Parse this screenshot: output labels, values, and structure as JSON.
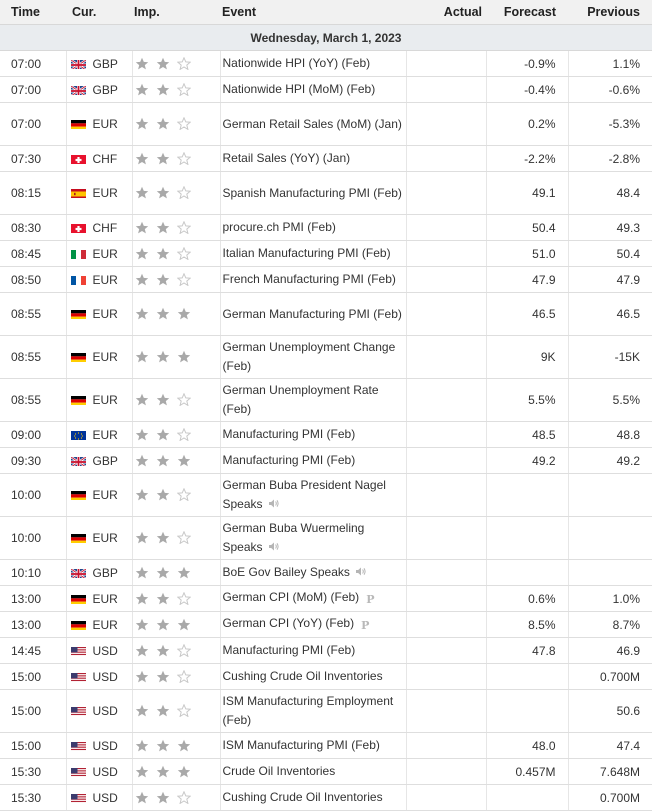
{
  "headers": {
    "time": "Time",
    "currency": "Cur.",
    "importance": "Imp.",
    "event": "Event",
    "actual": "Actual",
    "forecast": "Forecast",
    "previous": "Previous"
  },
  "date_label": "Wednesday, March 1, 2023",
  "colors": {
    "star_filled": "#a9a9a9",
    "star_empty": "#c8c8c8",
    "header_bg": "#f1f1f1",
    "date_bg": "#e9ecef"
  },
  "events": [
    {
      "time": "07:00",
      "flag": "gb",
      "currency": "GBP",
      "importance": 2,
      "event": "Nationwide HPI (YoY) (Feb)",
      "actual": "",
      "forecast": "-0.9%",
      "previous": "1.1%",
      "lines": 1,
      "icon": ""
    },
    {
      "time": "07:00",
      "flag": "gb",
      "currency": "GBP",
      "importance": 2,
      "event": "Nationwide HPI (MoM) (Feb)",
      "actual": "",
      "forecast": "-0.4%",
      "previous": "-0.6%",
      "lines": 1,
      "icon": ""
    },
    {
      "time": "07:00",
      "flag": "de",
      "currency": "EUR",
      "importance": 2,
      "event": "German Retail Sales (MoM) (Jan)",
      "actual": "",
      "forecast": "0.2%",
      "previous": "-5.3%",
      "lines": 2,
      "icon": ""
    },
    {
      "time": "07:30",
      "flag": "ch",
      "currency": "CHF",
      "importance": 2,
      "event": "Retail Sales (YoY) (Jan)",
      "actual": "",
      "forecast": "-2.2%",
      "previous": "-2.8%",
      "lines": 1,
      "icon": ""
    },
    {
      "time": "08:15",
      "flag": "es",
      "currency": "EUR",
      "importance": 2,
      "event": "Spanish Manufacturing PMI (Feb)",
      "actual": "",
      "forecast": "49.1",
      "previous": "48.4",
      "lines": 2,
      "icon": ""
    },
    {
      "time": "08:30",
      "flag": "ch",
      "currency": "CHF",
      "importance": 2,
      "event": "procure.ch PMI (Feb)",
      "actual": "",
      "forecast": "50.4",
      "previous": "49.3",
      "lines": 1,
      "icon": ""
    },
    {
      "time": "08:45",
      "flag": "it",
      "currency": "EUR",
      "importance": 2,
      "event": "Italian Manufacturing PMI (Feb)",
      "actual": "",
      "forecast": "51.0",
      "previous": "50.4",
      "lines": 1,
      "icon": ""
    },
    {
      "time": "08:50",
      "flag": "fr",
      "currency": "EUR",
      "importance": 2,
      "event": "French Manufacturing PMI (Feb)",
      "actual": "",
      "forecast": "47.9",
      "previous": "47.9",
      "lines": 1,
      "icon": ""
    },
    {
      "time": "08:55",
      "flag": "de",
      "currency": "EUR",
      "importance": 3,
      "event": "German Manufacturing PMI (Feb)",
      "actual": "",
      "forecast": "46.5",
      "previous": "46.5",
      "lines": 2,
      "icon": ""
    },
    {
      "time": "08:55",
      "flag": "de",
      "currency": "EUR",
      "importance": 3,
      "event": "German Unemployment Change (Feb)",
      "actual": "",
      "forecast": "9K",
      "previous": "-15K",
      "lines": 2,
      "icon": ""
    },
    {
      "time": "08:55",
      "flag": "de",
      "currency": "EUR",
      "importance": 2,
      "event": "German Unemployment Rate (Feb)",
      "actual": "",
      "forecast": "5.5%",
      "previous": "5.5%",
      "lines": 2,
      "icon": ""
    },
    {
      "time": "09:00",
      "flag": "eu",
      "currency": "EUR",
      "importance": 2,
      "event": "Manufacturing PMI (Feb)",
      "actual": "",
      "forecast": "48.5",
      "previous": "48.8",
      "lines": 1,
      "icon": ""
    },
    {
      "time": "09:30",
      "flag": "gb",
      "currency": "GBP",
      "importance": 3,
      "event": "Manufacturing PMI (Feb)",
      "actual": "",
      "forecast": "49.2",
      "previous": "49.2",
      "lines": 1,
      "icon": ""
    },
    {
      "time": "10:00",
      "flag": "de",
      "currency": "EUR",
      "importance": 2,
      "event": "German Buba President Nagel Speaks",
      "actual": "",
      "forecast": "",
      "previous": "",
      "lines": 2,
      "icon": "speaker"
    },
    {
      "time": "10:00",
      "flag": "de",
      "currency": "EUR",
      "importance": 2,
      "event": "German Buba Wuermeling Speaks",
      "actual": "",
      "forecast": "",
      "previous": "",
      "lines": 2,
      "icon": "speaker"
    },
    {
      "time": "10:10",
      "flag": "gb",
      "currency": "GBP",
      "importance": 3,
      "event": "BoE Gov Bailey Speaks",
      "actual": "",
      "forecast": "",
      "previous": "",
      "lines": 1,
      "icon": "speaker"
    },
    {
      "time": "13:00",
      "flag": "de",
      "currency": "EUR",
      "importance": 2,
      "event": "German CPI (MoM) (Feb)",
      "actual": "",
      "forecast": "0.6%",
      "previous": "1.0%",
      "lines": 1,
      "icon": "preliminary"
    },
    {
      "time": "13:00",
      "flag": "de",
      "currency": "EUR",
      "importance": 3,
      "event": "German CPI (YoY) (Feb)",
      "actual": "",
      "forecast": "8.5%",
      "previous": "8.7%",
      "lines": 1,
      "icon": "preliminary"
    },
    {
      "time": "14:45",
      "flag": "us",
      "currency": "USD",
      "importance": 2,
      "event": "Manufacturing PMI (Feb)",
      "actual": "",
      "forecast": "47.8",
      "previous": "46.9",
      "lines": 1,
      "icon": ""
    },
    {
      "time": "15:00",
      "flag": "us",
      "currency": "USD",
      "importance": 2,
      "event": "Cushing Crude Oil Inventories",
      "actual": "",
      "forecast": "",
      "previous": "0.700M",
      "lines": 1,
      "icon": ""
    },
    {
      "time": "15:00",
      "flag": "us",
      "currency": "USD",
      "importance": 2,
      "event": "ISM Manufacturing Employment (Feb)",
      "actual": "",
      "forecast": "",
      "previous": "50.6",
      "lines": 2,
      "icon": ""
    },
    {
      "time": "15:00",
      "flag": "us",
      "currency": "USD",
      "importance": 3,
      "event": "ISM Manufacturing PMI (Feb)",
      "actual": "",
      "forecast": "48.0",
      "previous": "47.4",
      "lines": 1,
      "icon": ""
    },
    {
      "time": "15:30",
      "flag": "us",
      "currency": "USD",
      "importance": 3,
      "event": "Crude Oil Inventories",
      "actual": "",
      "forecast": "0.457M",
      "previous": "7.648M",
      "lines": 1,
      "icon": ""
    },
    {
      "time": "15:30",
      "flag": "us",
      "currency": "USD",
      "importance": 2,
      "event": "Cushing Crude Oil Inventories",
      "actual": "",
      "forecast": "",
      "previous": "0.700M",
      "lines": 1,
      "icon": ""
    }
  ]
}
